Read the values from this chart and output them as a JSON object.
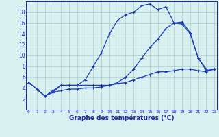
{
  "x_hours": [
    0,
    1,
    2,
    3,
    4,
    5,
    6,
    7,
    8,
    9,
    10,
    11,
    12,
    13,
    14,
    15,
    16,
    17,
    18,
    19,
    20,
    21,
    22,
    23
  ],
  "line1": [
    5.0,
    3.8,
    2.5,
    3.2,
    3.5,
    3.8,
    3.8,
    4.0,
    4.0,
    4.2,
    4.5,
    4.8,
    5.0,
    5.5,
    6.0,
    6.5,
    7.0,
    7.0,
    7.2,
    7.5,
    7.5,
    7.2,
    7.0,
    7.5
  ],
  "line2": [
    5.0,
    3.8,
    2.5,
    3.2,
    4.5,
    4.5,
    4.5,
    5.5,
    8.0,
    10.5,
    14.0,
    16.5,
    17.5,
    18.0,
    19.2,
    19.5,
    18.5,
    19.0,
    16.0,
    15.8,
    14.0,
    9.5,
    7.2,
    7.5
  ],
  "line3": [
    5.0,
    3.8,
    2.5,
    3.5,
    4.5,
    4.5,
    4.5,
    4.5,
    4.5,
    4.5,
    4.5,
    5.0,
    6.0,
    7.5,
    9.5,
    11.5,
    13.0,
    15.0,
    16.0,
    16.2,
    14.2,
    9.5,
    7.5,
    7.5
  ],
  "line_color": "#1a3ab5",
  "bg_color": "#d8f0f0",
  "grid_color": "#aacccc",
  "axis_color": "#2222aa",
  "ylim": [
    0,
    20
  ],
  "yticks": [
    2,
    4,
    6,
    8,
    10,
    12,
    14,
    16,
    18
  ],
  "xtick_labels": [
    "0",
    "1",
    "2",
    "3",
    "4",
    "5",
    "6",
    "7",
    "8",
    "9",
    "10",
    "11",
    "12",
    "13",
    "14",
    "15",
    "16",
    "17",
    "18",
    "19",
    "20",
    "21",
    "22",
    "23"
  ],
  "xlabel": "Graphe des températures (°C)"
}
